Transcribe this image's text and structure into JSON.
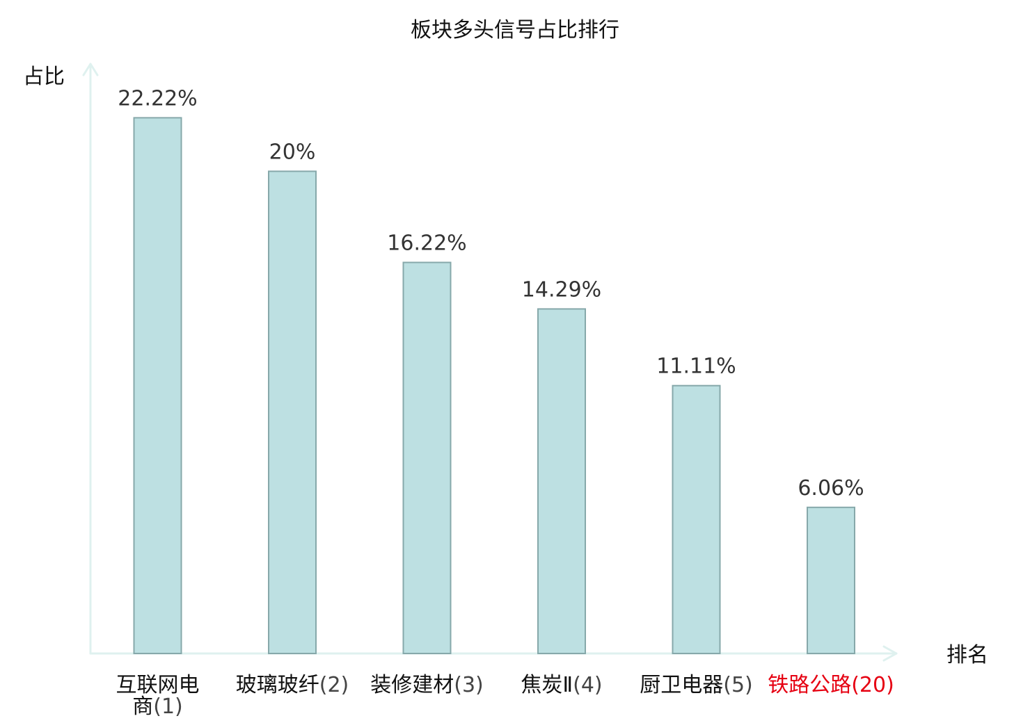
{
  "chart_data": {
    "type": "bar",
    "title": "板块多头信号占比排行",
    "xlabel": "排名",
    "ylabel": "占比",
    "categories": [
      {
        "name": "互联网电",
        "name2": "商",
        "rank": "(1)",
        "highlight": false
      },
      {
        "name": "玻璃玻纤",
        "name2": "",
        "rank": "(2)",
        "highlight": false
      },
      {
        "name": "装修建材",
        "name2": "",
        "rank": "(3)",
        "highlight": false
      },
      {
        "name": "焦炭Ⅱ",
        "name2": "",
        "rank": "(4)",
        "highlight": false
      },
      {
        "name": "厨卫电器",
        "name2": "",
        "rank": "(5)",
        "highlight": false
      },
      {
        "name": "铁路公路",
        "name2": "",
        "rank": "(20)",
        "highlight": true
      }
    ],
    "values": [
      22.22,
      20,
      16.22,
      14.29,
      11.11,
      6.06
    ],
    "value_labels": [
      "22.22%",
      "20%",
      "16.22%",
      "14.29%",
      "11.11%",
      "6.06%"
    ],
    "ylim": [
      0,
      23.5
    ],
    "grid": false,
    "legend": "none",
    "colors": {
      "bar_fill": "#bde0e2",
      "bar_stroke": "#86a8aa",
      "axis": "#dff1ef",
      "text": "#111111",
      "rank_text": "#444444",
      "value_text": "#333333",
      "highlight": "#e60012"
    }
  }
}
